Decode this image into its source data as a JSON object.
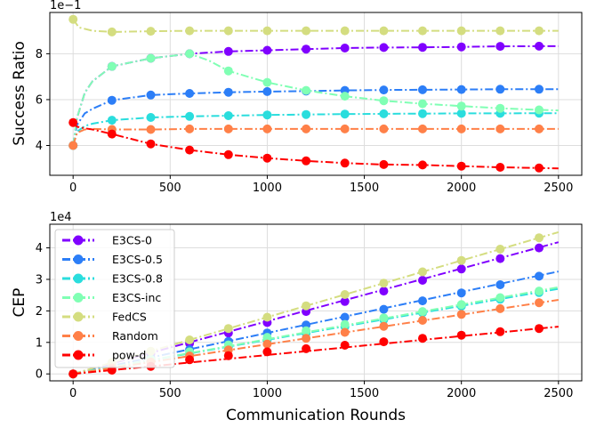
{
  "chart_data": [
    {
      "type": "line",
      "ylabel": "Success Ratio",
      "xlabel": "",
      "xlim": [
        -120,
        2620
      ],
      "ylim": [
        2.7,
        9.8
      ],
      "xticks": [
        0,
        500,
        1000,
        1500,
        2000,
        2500
      ],
      "xtick_labels": [
        "0",
        "500",
        "1000",
        "1500",
        "2000",
        "2500"
      ],
      "yticks": [
        4,
        6,
        8
      ],
      "ytick_labels": [
        "4",
        "6",
        "8"
      ],
      "offset_label": "1e−1",
      "grid": true,
      "marker_x": [
        0,
        200,
        400,
        600,
        800,
        1000,
        1200,
        1400,
        1600,
        1800,
        2000,
        2200,
        2400
      ],
      "series": [
        {
          "name": "E3CS-0",
          "color": "#8000ff",
          "curve": [
            [
              0,
              4.0
            ],
            [
              20,
              5.2
            ],
            [
              60,
              6.3
            ],
            [
              100,
              6.8
            ],
            [
              200,
              7.45
            ],
            [
              400,
              7.8
            ],
            [
              600,
              8.0
            ],
            [
              800,
              8.1
            ],
            [
              1000,
              8.15
            ],
            [
              1200,
              8.2
            ],
            [
              1400,
              8.25
            ],
            [
              1600,
              8.27
            ],
            [
              1800,
              8.28
            ],
            [
              2000,
              8.3
            ],
            [
              2200,
              8.32
            ],
            [
              2400,
              8.33
            ],
            [
              2500,
              8.33
            ]
          ],
          "markers": [
            4.0,
            7.45,
            7.8,
            8.0,
            8.1,
            8.15,
            8.2,
            8.25,
            8.27,
            8.28,
            8.3,
            8.32,
            8.33
          ]
        },
        {
          "name": "E3CS-0.5",
          "color": "#2c7ef7",
          "curve": [
            [
              0,
              4.0
            ],
            [
              20,
              4.9
            ],
            [
              60,
              5.4
            ],
            [
              100,
              5.6
            ],
            [
              200,
              5.97
            ],
            [
              400,
              6.2
            ],
            [
              600,
              6.27
            ],
            [
              800,
              6.32
            ],
            [
              1000,
              6.35
            ],
            [
              1200,
              6.37
            ],
            [
              1400,
              6.4
            ],
            [
              1600,
              6.42
            ],
            [
              1800,
              6.43
            ],
            [
              2000,
              6.44
            ],
            [
              2200,
              6.45
            ],
            [
              2400,
              6.45
            ],
            [
              2500,
              6.45
            ]
          ],
          "markers": [
            4.0,
            5.97,
            6.2,
            6.27,
            6.32,
            6.35,
            6.37,
            6.4,
            6.42,
            6.43,
            6.44,
            6.45,
            6.45
          ]
        },
        {
          "name": "E3CS-0.8",
          "color": "#2adddd",
          "curve": [
            [
              0,
              4.0
            ],
            [
              20,
              4.6
            ],
            [
              60,
              4.85
            ],
            [
              100,
              4.95
            ],
            [
              200,
              5.1
            ],
            [
              400,
              5.22
            ],
            [
              600,
              5.27
            ],
            [
              800,
              5.3
            ],
            [
              1000,
              5.33
            ],
            [
              1200,
              5.35
            ],
            [
              1400,
              5.37
            ],
            [
              1600,
              5.38
            ],
            [
              1800,
              5.39
            ],
            [
              2000,
              5.4
            ],
            [
              2200,
              5.4
            ],
            [
              2400,
              5.41
            ],
            [
              2500,
              5.41
            ]
          ],
          "markers": [
            4.0,
            5.1,
            5.22,
            5.27,
            5.3,
            5.33,
            5.35,
            5.37,
            5.38,
            5.39,
            5.4,
            5.4,
            5.41
          ]
        },
        {
          "name": "E3CS-inc",
          "color": "#80ffb4",
          "curve": [
            [
              0,
              4.0
            ],
            [
              20,
              5.2
            ],
            [
              60,
              6.3
            ],
            [
              100,
              6.8
            ],
            [
              200,
              7.45
            ],
            [
              400,
              7.8
            ],
            [
              600,
              8.0
            ],
            [
              700,
              7.7
            ],
            [
              800,
              7.25
            ],
            [
              1000,
              6.75
            ],
            [
              1200,
              6.4
            ],
            [
              1400,
              6.15
            ],
            [
              1600,
              5.95
            ],
            [
              1800,
              5.82
            ],
            [
              2000,
              5.72
            ],
            [
              2200,
              5.62
            ],
            [
              2400,
              5.55
            ],
            [
              2500,
              5.53
            ]
          ],
          "markers": [
            4.0,
            7.45,
            7.8,
            8.0,
            7.25,
            6.75,
            6.4,
            6.15,
            5.95,
            5.82,
            5.72,
            5.62,
            5.55
          ]
        },
        {
          "name": "FedCS",
          "color": "#d4dd80",
          "curve": [
            [
              0,
              9.5
            ],
            [
              30,
              9.15
            ],
            [
              100,
              9.0
            ],
            [
              200,
              8.95
            ],
            [
              400,
              8.98
            ],
            [
              600,
              9.0
            ],
            [
              800,
              9.0
            ],
            [
              1000,
              9.0
            ],
            [
              1200,
              9.0
            ],
            [
              1400,
              9.0
            ],
            [
              1600,
              9.0
            ],
            [
              1800,
              9.0
            ],
            [
              2000,
              9.0
            ],
            [
              2200,
              9.0
            ],
            [
              2400,
              9.0
            ],
            [
              2500,
              9.0
            ]
          ],
          "markers": [
            9.5,
            8.95,
            8.98,
            9.0,
            9.0,
            9.0,
            9.0,
            9.0,
            9.0,
            9.0,
            9.0,
            9.0,
            9.0
          ]
        },
        {
          "name": "Random",
          "color": "#ff8048",
          "curve": [
            [
              0,
              4.0
            ],
            [
              20,
              4.55
            ],
            [
              60,
              4.7
            ],
            [
              100,
              4.72
            ],
            [
              200,
              4.7
            ],
            [
              400,
              4.7
            ],
            [
              600,
              4.72
            ],
            [
              800,
              4.72
            ],
            [
              1000,
              4.72
            ],
            [
              1200,
              4.72
            ],
            [
              1400,
              4.72
            ],
            [
              1600,
              4.72
            ],
            [
              1800,
              4.72
            ],
            [
              2000,
              4.72
            ],
            [
              2200,
              4.72
            ],
            [
              2400,
              4.72
            ],
            [
              2500,
              4.72
            ]
          ],
          "markers": [
            4.0,
            4.7,
            4.7,
            4.72,
            4.72,
            4.72,
            4.72,
            4.72,
            4.72,
            4.72,
            4.72,
            4.72,
            4.72
          ]
        },
        {
          "name": "pow-d",
          "color": "#ff0000",
          "curve": [
            [
              0,
              5.0
            ],
            [
              20,
              4.82
            ],
            [
              60,
              4.75
            ],
            [
              100,
              4.7
            ],
            [
              200,
              4.5
            ],
            [
              400,
              4.07
            ],
            [
              600,
              3.8
            ],
            [
              800,
              3.6
            ],
            [
              1000,
              3.45
            ],
            [
              1200,
              3.33
            ],
            [
              1400,
              3.23
            ],
            [
              1600,
              3.17
            ],
            [
              1800,
              3.15
            ],
            [
              2000,
              3.1
            ],
            [
              2200,
              3.05
            ],
            [
              2400,
              3.02
            ],
            [
              2500,
              3.0
            ]
          ],
          "markers": [
            5.0,
            4.5,
            4.07,
            3.8,
            3.6,
            3.45,
            3.33,
            3.23,
            3.17,
            3.15,
            3.1,
            3.05,
            3.02
          ]
        }
      ]
    },
    {
      "type": "line",
      "ylabel": "CEP",
      "xlabel": "Communication Rounds",
      "xlim": [
        -120,
        2620
      ],
      "ylim": [
        -0.22,
        4.75
      ],
      "xticks": [
        0,
        500,
        1000,
        1500,
        2000,
        2500
      ],
      "xtick_labels": [
        "0",
        "500",
        "1000",
        "1500",
        "2000",
        "2500"
      ],
      "yticks": [
        0,
        1,
        2,
        3,
        4
      ],
      "ytick_labels": [
        "0",
        "1",
        "2",
        "3",
        "4"
      ],
      "offset_label": "1e4",
      "grid": true,
      "legend_position": "upper-left",
      "marker_x": [
        0,
        200,
        400,
        600,
        800,
        1000,
        1200,
        1400,
        1600,
        1800,
        2000,
        2200,
        2400
      ],
      "series": [
        {
          "name": "E3CS-0",
          "color": "#8000ff",
          "y_at_2500": 4.18,
          "markers": [
            0.0,
            0.32,
            0.64,
            0.97,
            1.3,
            1.63,
            1.98,
            2.3,
            2.63,
            2.97,
            3.33,
            3.66,
            4.0
          ]
        },
        {
          "name": "E3CS-0.5",
          "color": "#2c7ef7",
          "y_at_2500": 3.25,
          "markers": [
            0.0,
            0.25,
            0.5,
            0.77,
            1.03,
            1.3,
            1.55,
            1.8,
            2.05,
            2.32,
            2.57,
            2.83,
            3.1
          ]
        },
        {
          "name": "E3CS-0.8",
          "color": "#2adddd",
          "y_at_2500": 2.7,
          "markers": [
            0.0,
            0.21,
            0.42,
            0.64,
            0.86,
            1.07,
            1.29,
            1.5,
            1.72,
            1.94,
            2.15,
            2.37,
            2.58
          ]
        },
        {
          "name": "E3CS-inc",
          "color": "#80ffb4",
          "y_at_2500": 2.75,
          "markers": [
            0.0,
            0.23,
            0.46,
            0.7,
            0.92,
            1.16,
            1.37,
            1.57,
            1.78,
            1.98,
            2.2,
            2.42,
            2.63
          ]
        },
        {
          "name": "FedCS",
          "color": "#d4dd80",
          "y_at_2500": 4.5,
          "markers": [
            0.0,
            0.36,
            0.72,
            1.08,
            1.44,
            1.8,
            2.16,
            2.52,
            2.88,
            3.24,
            3.6,
            3.96,
            4.32
          ]
        },
        {
          "name": "Random",
          "color": "#ff8048",
          "y_at_2500": 2.35,
          "markers": [
            0.0,
            0.19,
            0.38,
            0.57,
            0.76,
            0.95,
            1.13,
            1.32,
            1.51,
            1.7,
            1.89,
            2.07,
            2.26
          ]
        },
        {
          "name": "pow-d",
          "color": "#ff0000",
          "y_at_2500": 1.5,
          "markers": [
            0.0,
            0.12,
            0.24,
            0.45,
            0.58,
            0.7,
            0.8,
            0.91,
            1.02,
            1.13,
            1.23,
            1.34,
            1.44
          ]
        }
      ]
    }
  ]
}
